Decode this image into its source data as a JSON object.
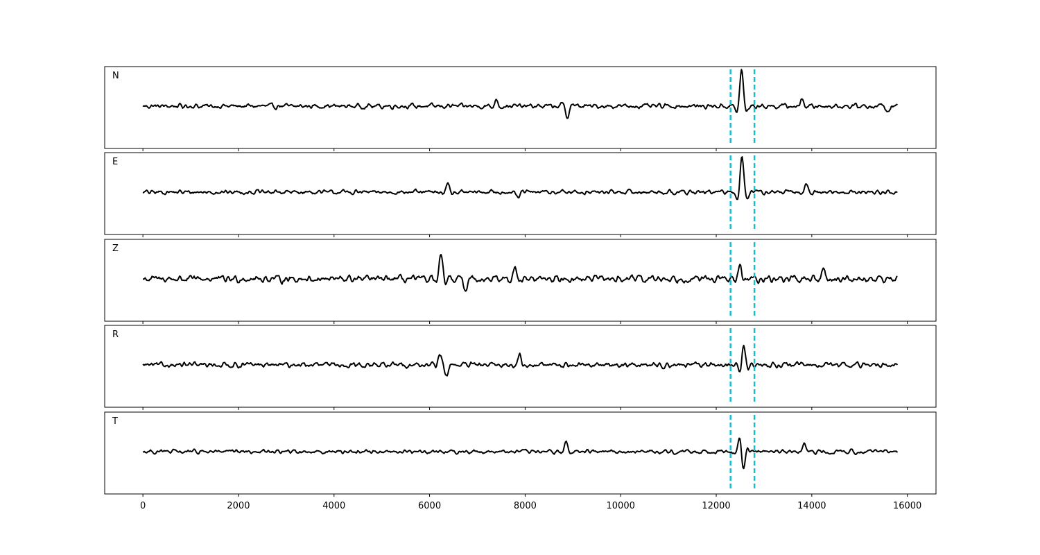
{
  "chart_data": {
    "type": "line",
    "title": "",
    "xlabel": "",
    "ylabel": "",
    "xlim": [
      -800,
      16600
    ],
    "x_ticks": [
      0,
      2000,
      4000,
      6000,
      8000,
      10000,
      12000,
      14000,
      16000
    ],
    "x_tick_labels": [
      "0",
      "2000",
      "4000",
      "6000",
      "8000",
      "10000",
      "12000",
      "14000",
      "16000"
    ],
    "sample_range": [
      0,
      15800
    ],
    "picks": [
      12300,
      12800
    ],
    "pick_color": "#17becf",
    "trace_color": "#000000",
    "grid": false,
    "legend": "none",
    "panels": [
      {
        "channel": "N",
        "background_amplitude": 0.12,
        "events": [
          {
            "x": 7400,
            "amp": 0.18
          },
          {
            "x": 8880,
            "amp": -0.3
          },
          {
            "x": 12530,
            "amp": 1.0
          },
          {
            "x": 13800,
            "amp": 0.2
          },
          {
            "x": 15600,
            "amp": -0.2
          }
        ]
      },
      {
        "channel": "E",
        "background_amplitude": 0.11,
        "events": [
          {
            "x": 6380,
            "amp": 0.27
          },
          {
            "x": 7850,
            "amp": -0.18
          },
          {
            "x": 12540,
            "amp": 1.0
          },
          {
            "x": 13880,
            "amp": 0.22
          }
        ]
      },
      {
        "channel": "Z",
        "background_amplitude": 0.17,
        "events": [
          {
            "x": 6240,
            "amp": 0.62
          },
          {
            "x": 6740,
            "amp": -0.38
          },
          {
            "x": 7780,
            "amp": 0.34
          },
          {
            "x": 12500,
            "amp": 0.32
          },
          {
            "x": 14250,
            "amp": 0.3
          }
        ]
      },
      {
        "channel": "R",
        "background_amplitude": 0.13,
        "events": [
          {
            "x": 6220,
            "amp": 0.27
          },
          {
            "x": 6360,
            "amp": -0.32
          },
          {
            "x": 7880,
            "amp": 0.32
          },
          {
            "x": 12560,
            "amp": 0.65
          },
          {
            "x": 12520,
            "amp": -0.35
          }
        ]
      },
      {
        "channel": "T",
        "background_amplitude": 0.1,
        "events": [
          {
            "x": 8860,
            "amp": 0.25
          },
          {
            "x": 12500,
            "amp": 0.45
          },
          {
            "x": 12560,
            "amp": -0.55
          },
          {
            "x": 13850,
            "amp": 0.2
          }
        ]
      }
    ]
  }
}
